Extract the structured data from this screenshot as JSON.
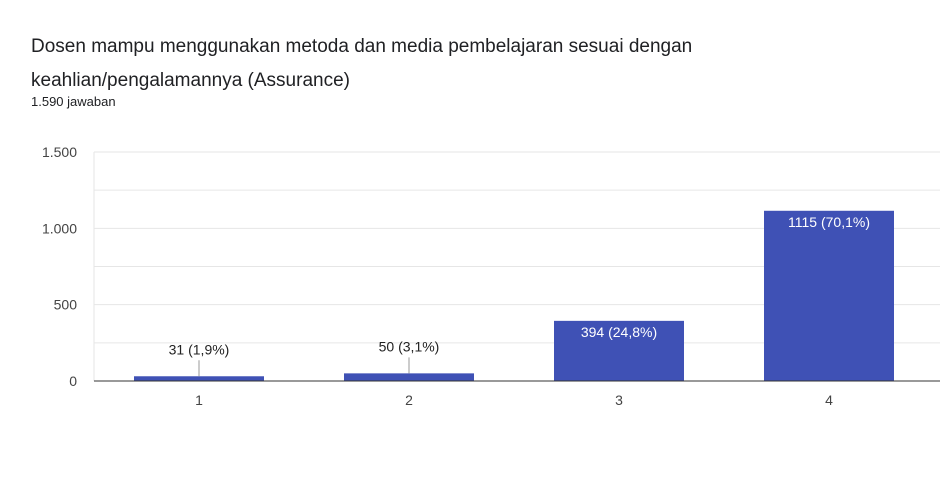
{
  "header": {
    "title": "Dosen mampu menggunakan metoda dan media pembelajaran sesuai dengan keahlian/pengalamannya (Assurance)",
    "response_count": "1.590 jawaban"
  },
  "chart_data": {
    "type": "bar",
    "categories": [
      "1",
      "2",
      "3",
      "4"
    ],
    "values": [
      31,
      50,
      394,
      1115
    ],
    "data_labels": [
      "31 (1,9%)",
      "50 (3,1%)",
      "394 (24,8%)",
      "1115 (70,1%)"
    ],
    "y_ticks": [
      0,
      500,
      1000,
      1500
    ],
    "y_tick_labels": [
      "0",
      "500",
      "1.000",
      "1.500"
    ],
    "ylim": [
      0,
      1500
    ],
    "bar_color": "#3f51b5",
    "grid": true,
    "legend": "none"
  }
}
